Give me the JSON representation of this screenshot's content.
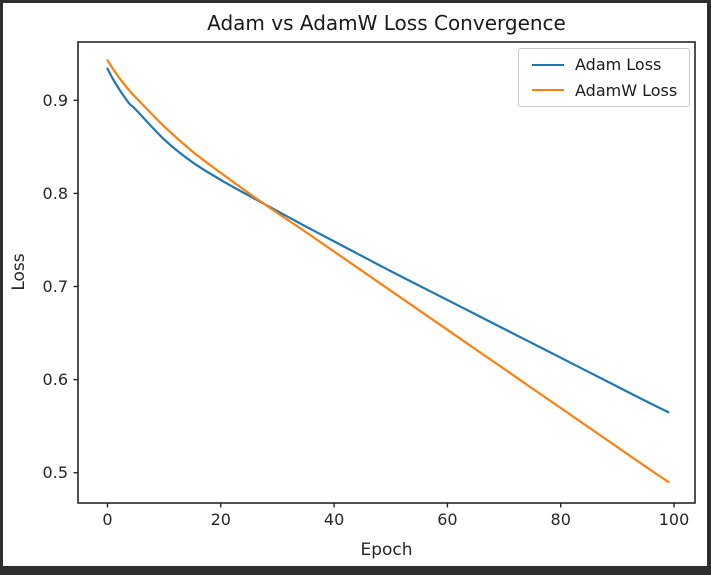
{
  "window": {
    "frame_color": "#2e2e2e",
    "figure_bg": "#ffffff"
  },
  "axes": {
    "spine_color": "#262626",
    "tick_color": "#262626",
    "text_color": "#262626"
  },
  "chart_data": {
    "type": "line",
    "title": "Adam vs AdamW Loss Convergence",
    "xlabel": "Epoch",
    "ylabel": "Loss",
    "x_tick_labels": [
      "0",
      "20",
      "40",
      "60",
      "80",
      "100"
    ],
    "x_tick_values": [
      0,
      20,
      40,
      60,
      80,
      100
    ],
    "y_tick_labels": [
      "0.5",
      "0.6",
      "0.7",
      "0.8",
      "0.9"
    ],
    "y_tick_values": [
      0.5,
      0.6,
      0.7,
      0.8,
      0.9
    ],
    "xlim": [
      -5.2,
      103.7
    ],
    "ylim": [
      0.4675,
      0.9626
    ],
    "grid": false,
    "legend_position": "upper right",
    "x": [
      0,
      1,
      2,
      3,
      4,
      5,
      10,
      15,
      20,
      25,
      30,
      35,
      40,
      45,
      50,
      55,
      60,
      65,
      70,
      75,
      80,
      85,
      90,
      95,
      99
    ],
    "series": [
      {
        "name": "Adam Loss",
        "color": "#1f77b4",
        "values": [
          0.934,
          0.9225,
          0.9125,
          0.9035,
          0.8955,
          0.89,
          0.858,
          0.8335,
          0.8145,
          0.7975,
          0.781,
          0.7645,
          0.7485,
          0.7325,
          0.7165,
          0.701,
          0.6855,
          0.67,
          0.6545,
          0.639,
          0.6235,
          0.608,
          0.5925,
          0.577,
          0.565
        ]
      },
      {
        "name": "AdamW Loss",
        "color": "#ff7f0e",
        "values": [
          0.943,
          0.9335,
          0.9247,
          0.9167,
          0.9095,
          0.903,
          0.872,
          0.845,
          0.822,
          0.8,
          0.779,
          0.7585,
          0.7375,
          0.7165,
          0.6955,
          0.6745,
          0.6535,
          0.6325,
          0.6115,
          0.5905,
          0.5695,
          0.5485,
          0.5275,
          0.5065,
          0.49
        ]
      }
    ]
  }
}
